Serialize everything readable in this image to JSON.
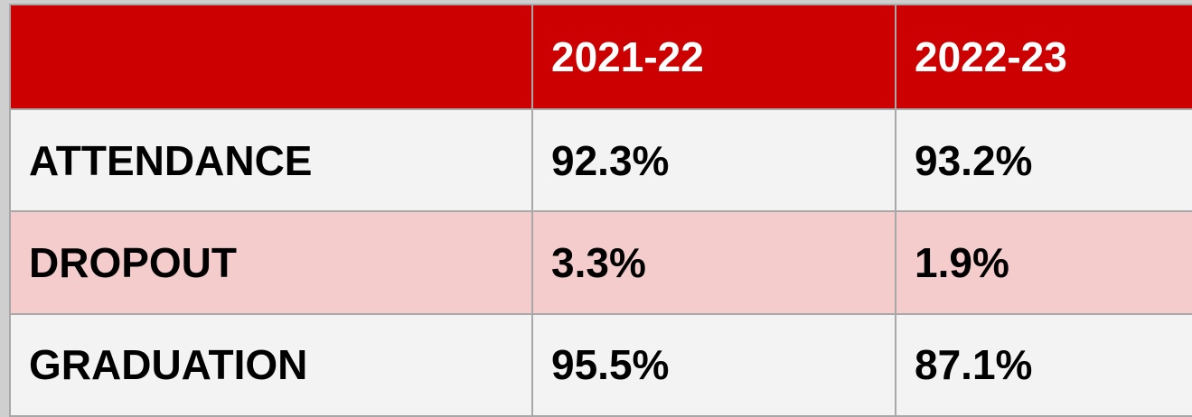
{
  "table": {
    "columns": [
      "2021-22",
      "2022-23"
    ],
    "rows": [
      {
        "label": "ATTENDANCE",
        "cells": [
          "92.3%",
          "93.2%"
        ]
      },
      {
        "label": "DROPOUT",
        "cells": [
          "3.3%",
          "1.9%"
        ]
      },
      {
        "label": "GRADUATION",
        "cells": [
          "95.5%",
          "87.1%"
        ]
      }
    ]
  }
}
